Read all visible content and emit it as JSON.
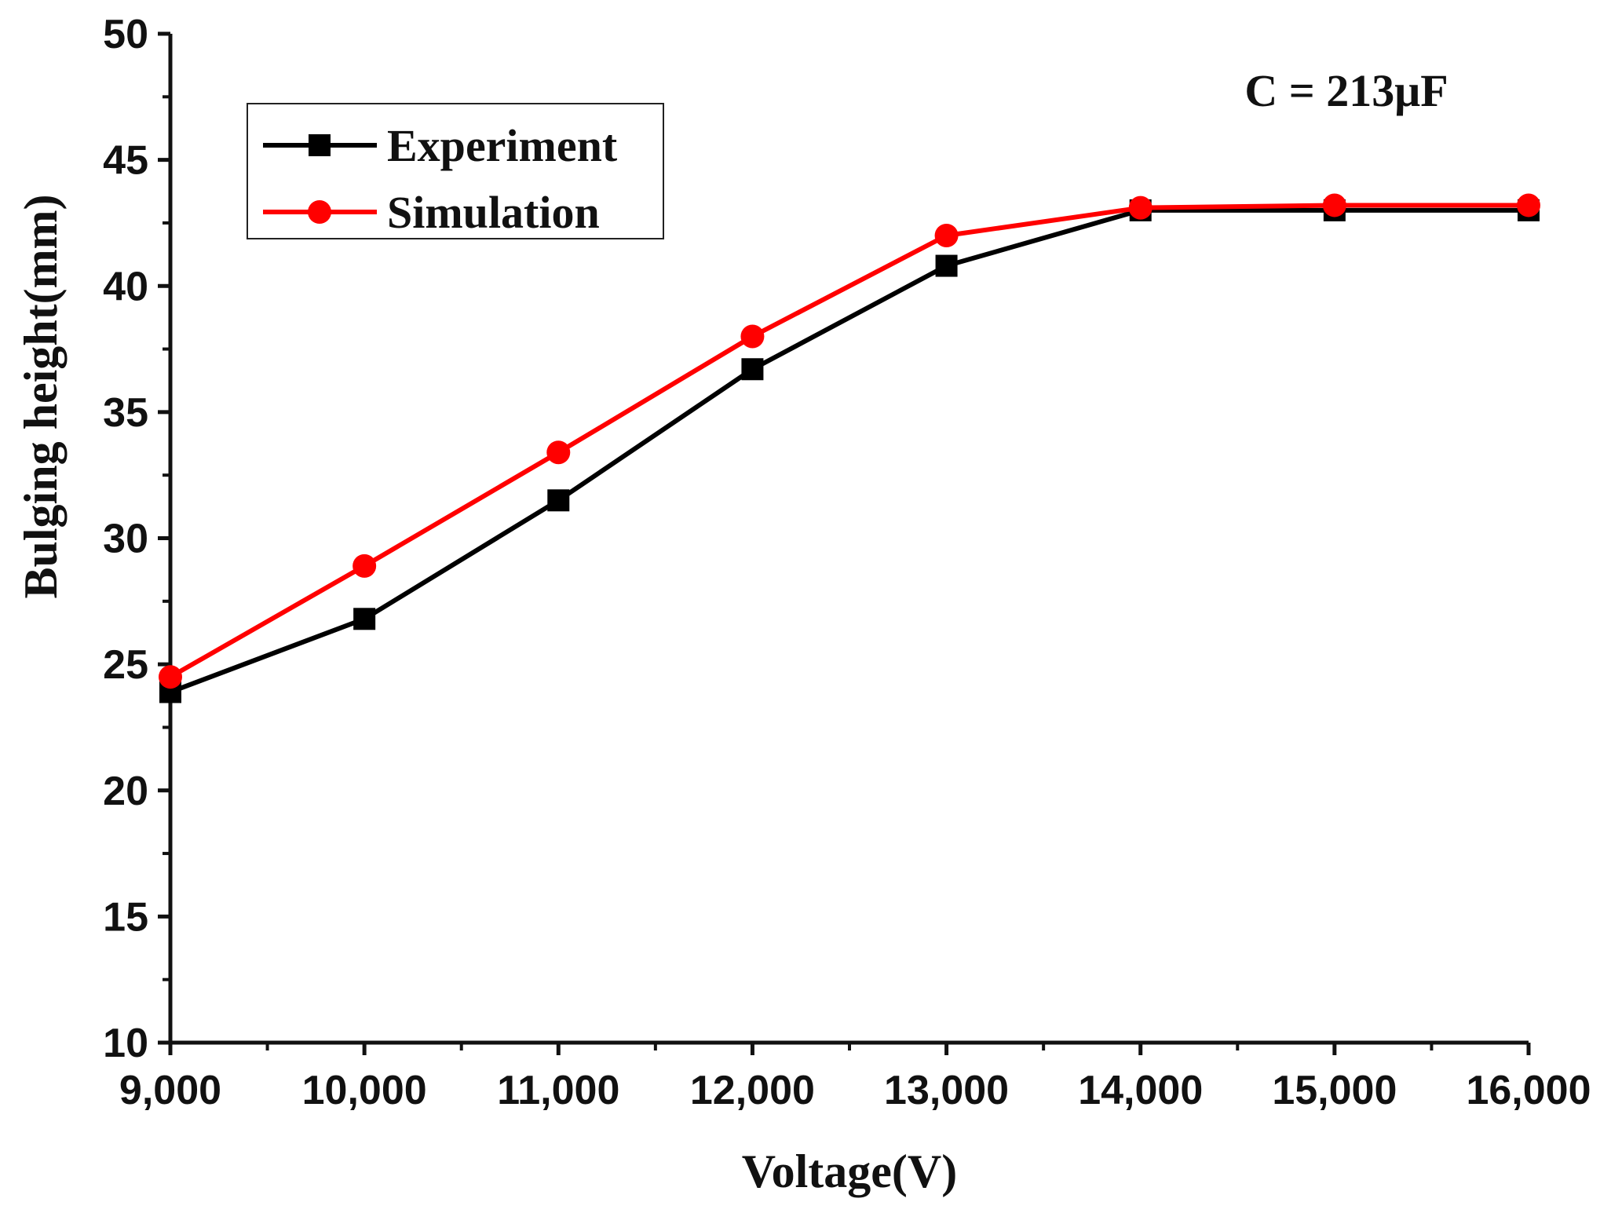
{
  "chart_data": {
    "type": "line",
    "title": "",
    "xlabel": "Voltage(V)",
    "ylabel": "Bulging height(mm)",
    "x": [
      9000,
      10000,
      11000,
      12000,
      13000,
      14000,
      15000,
      16000
    ],
    "x_tick_labels": [
      "9,000",
      "10,000",
      "11,000",
      "12,000",
      "13,000",
      "14,000",
      "15,000",
      "16,000"
    ],
    "y_tick_values": [
      10,
      15,
      20,
      25,
      30,
      35,
      40,
      45,
      50
    ],
    "y_tick_labels": [
      "10",
      "15",
      "20",
      "25",
      "30",
      "35",
      "40",
      "45",
      "50"
    ],
    "xlim": [
      9000,
      16000
    ],
    "ylim": [
      10,
      50
    ],
    "grid": false,
    "legend_position": "top-left",
    "annotation": "C = 213μF",
    "series": [
      {
        "name": "Experiment",
        "color": "#000000",
        "marker": "square",
        "values": [
          23.9,
          26.8,
          31.5,
          36.7,
          40.8,
          43.0,
          43.0,
          43.0
        ]
      },
      {
        "name": "Simulation",
        "color": "#ff0000",
        "marker": "circle",
        "values": [
          24.5,
          28.9,
          33.4,
          38.0,
          42.0,
          43.1,
          43.2,
          43.2
        ]
      }
    ]
  }
}
